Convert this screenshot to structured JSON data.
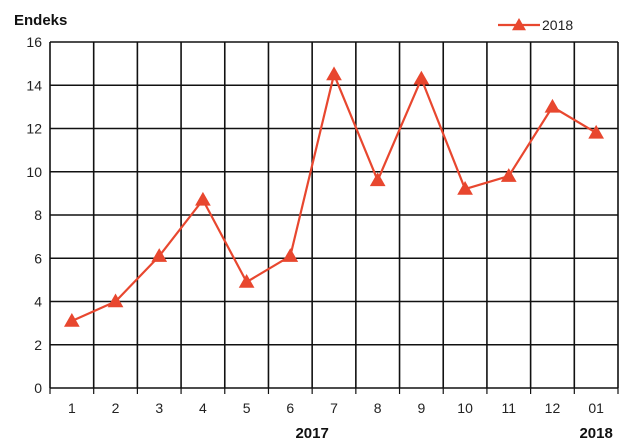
{
  "chart_data": {
    "type": "line",
    "title": "",
    "ylabel": "Endeks",
    "xlabel": "",
    "categories": [
      "1",
      "2",
      "3",
      "4",
      "5",
      "6",
      "7",
      "8",
      "9",
      "10",
      "11",
      "12",
      "01"
    ],
    "year_labels": [
      {
        "text": "2017",
        "under_category": "6.5"
      },
      {
        "text": "2018",
        "under_category": "01"
      }
    ],
    "series": [
      {
        "name": "2018",
        "color": "#e8472f",
        "marker": "triangle",
        "values": [
          3.1,
          4.0,
          6.1,
          8.7,
          4.9,
          6.1,
          14.5,
          9.6,
          14.3,
          9.2,
          9.8,
          13.0,
          11.8
        ]
      }
    ],
    "ylim": [
      0,
      16
    ],
    "yticks": [
      0,
      2,
      4,
      6,
      8,
      10,
      12,
      14,
      16
    ],
    "grid": true,
    "grid_color": "#111111",
    "legend_position": "top-right"
  }
}
